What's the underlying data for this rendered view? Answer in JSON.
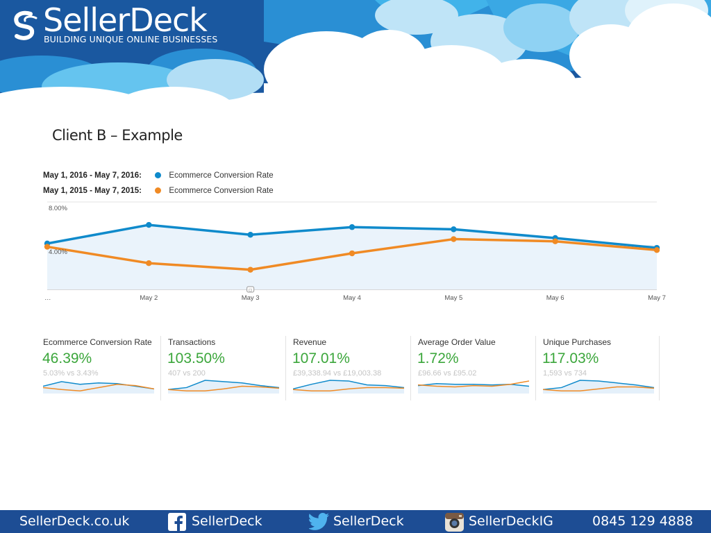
{
  "brand": {
    "name": "SellerDeck",
    "tagline": "BUILDING UNIQUE ONLINE BUSINESSES"
  },
  "slide_title": "Client B – Example",
  "legend": [
    {
      "range": "May 1, 2016 - May 7, 2016:",
      "metric": "Ecommerce Conversion Rate",
      "color": "#0f8acb"
    },
    {
      "range": "May 1, 2015 - May 7, 2015:",
      "metric": "Ecommerce Conversion Rate",
      "color": "#f08a24"
    }
  ],
  "chart_data": {
    "type": "line",
    "categories": [
      "…",
      "May 2",
      "May 3",
      "May 4",
      "May 5",
      "May 6",
      "May 7"
    ],
    "series": [
      {
        "name": "May 1, 2016 - May 7, 2016: Ecommerce Conversion Rate",
        "color": "#0f8acb",
        "values": [
          4.2,
          5.9,
          5.0,
          5.7,
          5.5,
          4.7,
          3.8
        ]
      },
      {
        "name": "May 1, 2015 - May 7, 2015: Ecommerce Conversion Rate",
        "color": "#f08a24",
        "values": [
          3.9,
          2.4,
          1.8,
          3.3,
          4.6,
          4.4,
          3.6
        ]
      }
    ],
    "yticks": [
      "8.00%",
      "4.00%"
    ],
    "ytick_values": [
      8,
      4
    ],
    "ylim": [
      0,
      8
    ],
    "grid": true,
    "legend_position": "top-left",
    "annotation": "◻"
  },
  "kpis": [
    {
      "name": "Ecommerce Conversion Rate",
      "value": "46.39%",
      "compare": "5.03% vs 3.43%",
      "spark_current": [
        0.55,
        0.9,
        0.7,
        0.8,
        0.75,
        0.55,
        0.35
      ],
      "spark_previous": [
        0.45,
        0.3,
        0.2,
        0.45,
        0.7,
        0.6,
        0.35
      ]
    },
    {
      "name": "Transactions",
      "value": "103.50%",
      "compare": "407 vs 200",
      "spark_current": [
        0.3,
        0.45,
        1.0,
        0.9,
        0.8,
        0.6,
        0.45
      ],
      "spark_previous": [
        0.3,
        0.2,
        0.2,
        0.35,
        0.55,
        0.5,
        0.4
      ]
    },
    {
      "name": "Revenue",
      "value": "107.01%",
      "compare": "£39,338.94 vs £19,003.38",
      "spark_current": [
        0.35,
        0.7,
        1.0,
        0.95,
        0.65,
        0.6,
        0.45
      ],
      "spark_previous": [
        0.3,
        0.2,
        0.2,
        0.35,
        0.45,
        0.45,
        0.4
      ]
    },
    {
      "name": "Average Order Value",
      "value": "1.72%",
      "compare": "£96.66 vs £95.02",
      "spark_current": [
        0.6,
        0.75,
        0.7,
        0.7,
        0.65,
        0.7,
        0.55
      ],
      "spark_previous": [
        0.65,
        0.55,
        0.5,
        0.6,
        0.55,
        0.7,
        0.95
      ]
    },
    {
      "name": "Unique Purchases",
      "value": "117.03%",
      "compare": "1,593 vs 734",
      "spark_current": [
        0.3,
        0.45,
        1.0,
        0.95,
        0.8,
        0.65,
        0.45
      ],
      "spark_previous": [
        0.3,
        0.2,
        0.2,
        0.35,
        0.5,
        0.5,
        0.4
      ]
    }
  ],
  "footer": {
    "website": "SellerDeck.co.uk",
    "facebook": "SellerDeck",
    "twitter": "SellerDeck",
    "instagram": "SellerDeckIG",
    "phone": "0845 129 4888"
  }
}
